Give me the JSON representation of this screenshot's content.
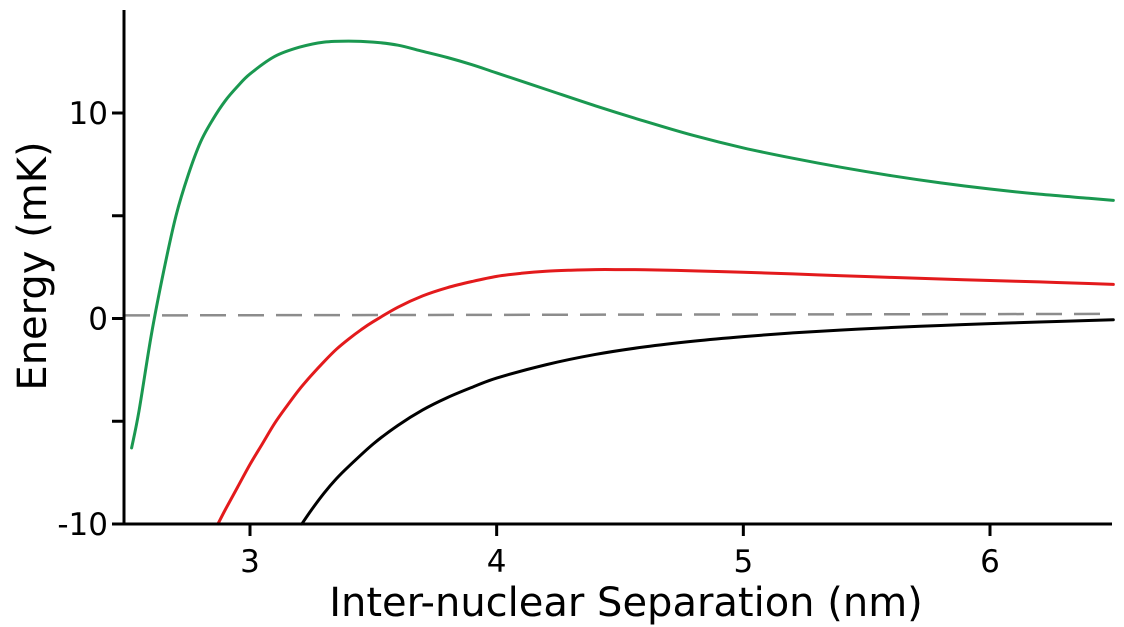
{
  "chart_data": {
    "type": "line",
    "title": "",
    "xlabel": "Inter-nuclear Separation (nm)",
    "ylabel": "Energy (mK)",
    "xlim": [
      2.5,
      6.5
    ],
    "ylim": [
      -10,
      15
    ],
    "x_ticks": [
      3,
      4,
      5,
      6
    ],
    "y_ticks": [
      -10,
      -5,
      0,
      5,
      10
    ],
    "y_tick_labels": [
      "-10",
      "",
      "0",
      "",
      "10"
    ],
    "grid": false,
    "legend": "none",
    "series": [
      {
        "color": "#1a9850",
        "points": [
          [
            2.52,
            -6.3
          ],
          [
            2.55,
            -4.5
          ],
          [
            2.6,
            -0.8
          ],
          [
            2.65,
            2.3
          ],
          [
            2.7,
            5.0
          ],
          [
            2.75,
            7.0
          ],
          [
            2.8,
            8.6
          ],
          [
            2.85,
            9.7
          ],
          [
            2.9,
            10.6
          ],
          [
            2.95,
            11.3
          ],
          [
            3.0,
            11.9
          ],
          [
            3.1,
            12.75
          ],
          [
            3.2,
            13.2
          ],
          [
            3.3,
            13.45
          ],
          [
            3.4,
            13.5
          ],
          [
            3.5,
            13.45
          ],
          [
            3.6,
            13.3
          ],
          [
            3.7,
            13.0
          ],
          [
            3.8,
            12.7
          ],
          [
            3.9,
            12.35
          ],
          [
            4.0,
            11.95
          ],
          [
            4.2,
            11.15
          ],
          [
            4.4,
            10.35
          ],
          [
            4.6,
            9.6
          ],
          [
            4.8,
            8.9
          ],
          [
            5.0,
            8.3
          ],
          [
            5.2,
            7.8
          ],
          [
            5.4,
            7.35
          ],
          [
            5.6,
            6.95
          ],
          [
            5.8,
            6.6
          ],
          [
            6.0,
            6.3
          ],
          [
            6.2,
            6.05
          ],
          [
            6.4,
            5.85
          ],
          [
            6.5,
            5.75
          ]
        ]
      },
      {
        "color": "#e31a1c",
        "points": [
          [
            2.87,
            -10.0
          ],
          [
            2.9,
            -9.3
          ],
          [
            2.95,
            -8.2
          ],
          [
            3.0,
            -7.1
          ],
          [
            3.05,
            -6.1
          ],
          [
            3.1,
            -5.1
          ],
          [
            3.15,
            -4.25
          ],
          [
            3.2,
            -3.45
          ],
          [
            3.25,
            -2.75
          ],
          [
            3.3,
            -2.1
          ],
          [
            3.35,
            -1.5
          ],
          [
            3.4,
            -1.0
          ],
          [
            3.45,
            -0.55
          ],
          [
            3.5,
            -0.15
          ],
          [
            3.6,
            0.55
          ],
          [
            3.7,
            1.1
          ],
          [
            3.8,
            1.5
          ],
          [
            3.9,
            1.8
          ],
          [
            4.0,
            2.05
          ],
          [
            4.1,
            2.2
          ],
          [
            4.2,
            2.3
          ],
          [
            4.3,
            2.35
          ],
          [
            4.4,
            2.38
          ],
          [
            4.5,
            2.38
          ],
          [
            4.6,
            2.37
          ],
          [
            4.8,
            2.32
          ],
          [
            5.0,
            2.25
          ],
          [
            5.2,
            2.17
          ],
          [
            5.4,
            2.08
          ],
          [
            5.6,
            2.0
          ],
          [
            5.8,
            1.92
          ],
          [
            6.0,
            1.85
          ],
          [
            6.2,
            1.78
          ],
          [
            6.4,
            1.7
          ],
          [
            6.5,
            1.66
          ]
        ]
      },
      {
        "color": "#000000",
        "points": [
          [
            3.21,
            -10.0
          ],
          [
            3.25,
            -9.3
          ],
          [
            3.3,
            -8.5
          ],
          [
            3.35,
            -7.8
          ],
          [
            3.4,
            -7.2
          ],
          [
            3.5,
            -6.1
          ],
          [
            3.6,
            -5.2
          ],
          [
            3.7,
            -4.45
          ],
          [
            3.8,
            -3.85
          ],
          [
            3.9,
            -3.35
          ],
          [
            4.0,
            -2.9
          ],
          [
            4.2,
            -2.25
          ],
          [
            4.4,
            -1.75
          ],
          [
            4.6,
            -1.38
          ],
          [
            4.8,
            -1.1
          ],
          [
            5.0,
            -0.88
          ],
          [
            5.2,
            -0.7
          ],
          [
            5.4,
            -0.56
          ],
          [
            5.6,
            -0.44
          ],
          [
            5.8,
            -0.34
          ],
          [
            6.0,
            -0.25
          ],
          [
            6.2,
            -0.17
          ],
          [
            6.4,
            -0.1
          ],
          [
            6.5,
            -0.06
          ]
        ]
      }
    ],
    "reference_line": {
      "style": "dashed",
      "color": "#8c8c8c",
      "y": 0.15
    }
  }
}
